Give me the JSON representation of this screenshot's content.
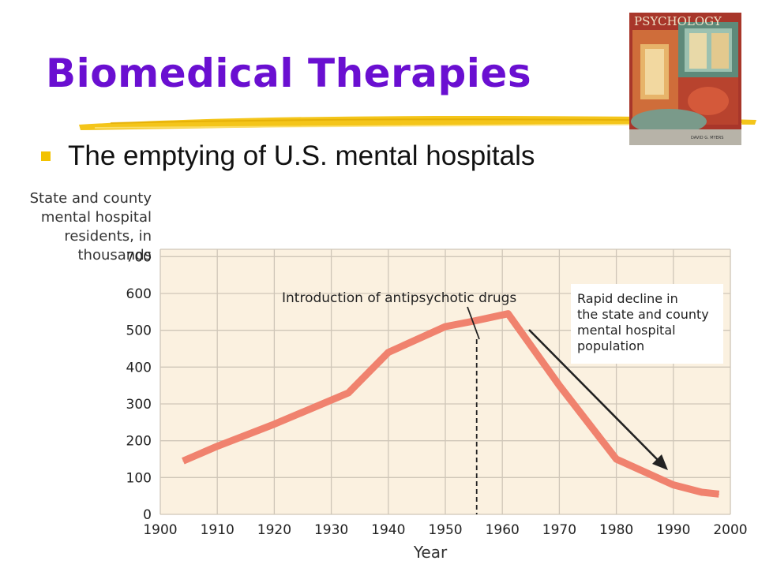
{
  "slide": {
    "title": "Biomedical Therapies",
    "bullet": "The emptying of U.S. mental hospitals",
    "book_cover": {
      "title": "PSYCHOLOGY",
      "author": "DAVID G. MYERS"
    }
  },
  "colors": {
    "title": "#6a0fd1",
    "bullet": "#f2c200",
    "plot_background": "#fbf1e0",
    "series_line": "#f0826e",
    "annotation_arrow": "#222222"
  },
  "chart_data": {
    "type": "line",
    "title": "",
    "ylabel_lines": [
      "State and county",
      "mental hospital",
      "residents, in",
      "thousands"
    ],
    "xlabel": "Year",
    "xlim": [
      1900,
      2000
    ],
    "ylim": [
      0,
      720
    ],
    "x_ticks": [
      1900,
      1910,
      1920,
      1930,
      1940,
      1950,
      1960,
      1970,
      1980,
      1990,
      2000
    ],
    "y_ticks": [
      0,
      100,
      200,
      300,
      400,
      500,
      600,
      700
    ],
    "grid": true,
    "series": [
      {
        "x": [
          1904,
          1910,
          1920,
          1933,
          1940,
          1950,
          1955,
          1961,
          1970,
          1980,
          1990,
          1995,
          1998
        ],
        "y": [
          145,
          185,
          245,
          330,
          440,
          510,
          525,
          545,
          350,
          150,
          80,
          60,
          55
        ]
      }
    ],
    "annotations": [
      {
        "text": "Introduction of antipsychotic drugs",
        "x": 1955.5
      },
      {
        "text_lines": [
          "Rapid decline in",
          "the state and county",
          "mental hospital",
          "population"
        ]
      }
    ]
  }
}
